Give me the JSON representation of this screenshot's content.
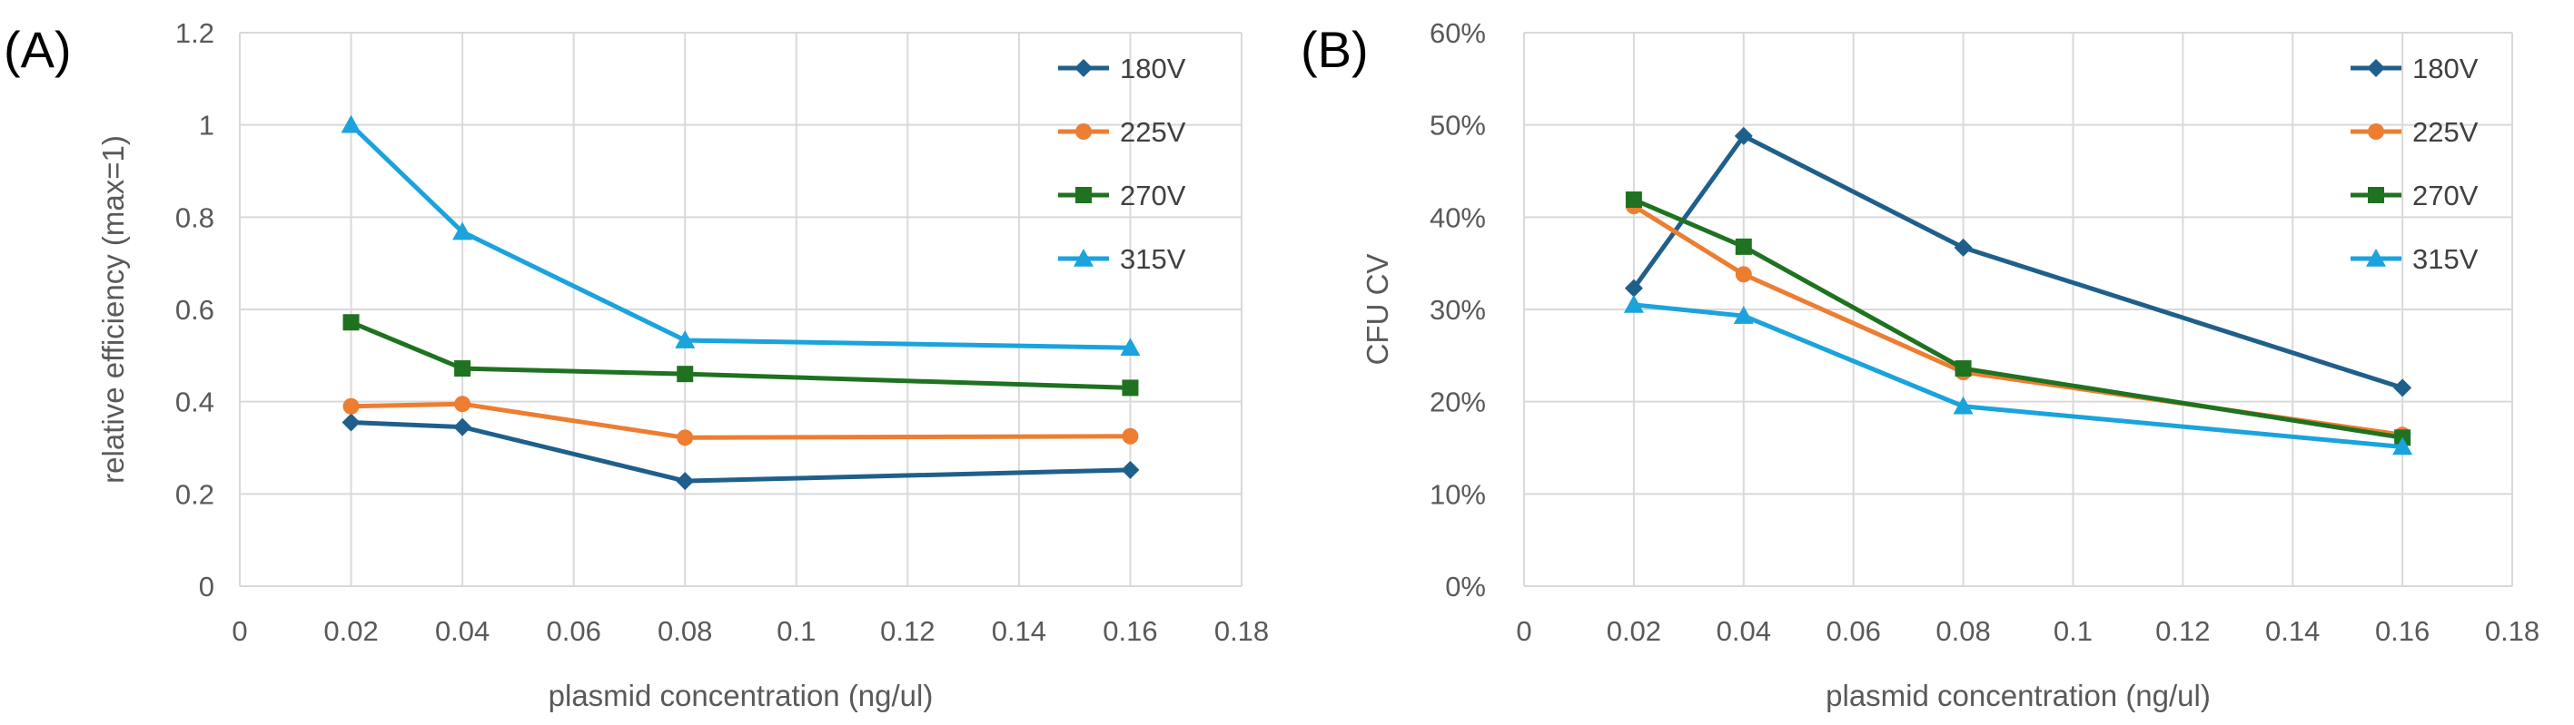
{
  "panels": [
    {
      "label": "(A)"
    },
    {
      "label": "(B)"
    }
  ],
  "chart_data": [
    {
      "type": "line",
      "panel": "(A)",
      "title": "",
      "xlabel": "plasmid concentration (ng/ul)",
      "ylabel": "relative efficiency (max=1)",
      "xlim": [
        0,
        0.18
      ],
      "ylim": [
        0,
        1.2
      ],
      "xticks": [
        0,
        0.02,
        0.04,
        0.06,
        0.08,
        0.1,
        0.12,
        0.14,
        0.16,
        0.18
      ],
      "xtick_labels": [
        "0",
        "0.02",
        "0.04",
        "0.06",
        "0.08",
        "0.1",
        "0.12",
        "0.14",
        "0.16",
        "0.18"
      ],
      "yticks": [
        0,
        0.2,
        0.4,
        0.6,
        0.8,
        1,
        1.2
      ],
      "ytick_labels": [
        "0",
        "0.2",
        "0.4",
        "0.6",
        "0.8",
        "1",
        "1.2"
      ],
      "grid": true,
      "legend_position": "top-right",
      "x": [
        0.02,
        0.04,
        0.08,
        0.16
      ],
      "series": [
        {
          "name": "180V",
          "color": "#1f5f8b",
          "marker": "diamond",
          "values": [
            0.355,
            0.345,
            0.228,
            0.252
          ]
        },
        {
          "name": "225V",
          "color": "#ed7d31",
          "marker": "circle",
          "values": [
            0.39,
            0.395,
            0.322,
            0.325
          ]
        },
        {
          "name": "270V",
          "color": "#1e7220",
          "marker": "square",
          "values": [
            0.572,
            0.472,
            0.46,
            0.43
          ]
        },
        {
          "name": "315V",
          "color": "#1aa3dc",
          "marker": "triangle",
          "values": [
            1.0,
            0.768,
            0.533,
            0.517
          ]
        }
      ]
    },
    {
      "type": "line",
      "panel": "(B)",
      "title": "",
      "xlabel": "plasmid concentration (ng/ul)",
      "ylabel": "CFU CV",
      "xlim": [
        0,
        0.18
      ],
      "ylim": [
        0,
        0.6
      ],
      "xticks": [
        0,
        0.02,
        0.04,
        0.06,
        0.08,
        0.1,
        0.12,
        0.14,
        0.16,
        0.18
      ],
      "xtick_labels": [
        "0",
        "0.02",
        "0.04",
        "0.06",
        "0.08",
        "0.1",
        "0.12",
        "0.14",
        "0.16",
        "0.18"
      ],
      "yticks": [
        0,
        0.1,
        0.2,
        0.3,
        0.4,
        0.5,
        0.6
      ],
      "ytick_labels": [
        "0%",
        "10%",
        "20%",
        "30%",
        "40%",
        "50%",
        "60%"
      ],
      "grid": true,
      "legend_position": "top-right",
      "x": [
        0.02,
        0.04,
        0.08,
        0.16
      ],
      "series": [
        {
          "name": "180V",
          "color": "#1f5f8b",
          "marker": "diamond",
          "values": [
            0.323,
            0.488,
            0.367,
            0.215
          ]
        },
        {
          "name": "225V",
          "color": "#ed7d31",
          "marker": "circle",
          "values": [
            0.412,
            0.338,
            0.232,
            0.164
          ]
        },
        {
          "name": "270V",
          "color": "#1e7220",
          "marker": "square",
          "values": [
            0.419,
            0.368,
            0.236,
            0.161
          ]
        },
        {
          "name": "315V",
          "color": "#1aa3dc",
          "marker": "triangle",
          "values": [
            0.305,
            0.293,
            0.195,
            0.151
          ]
        }
      ]
    }
  ]
}
